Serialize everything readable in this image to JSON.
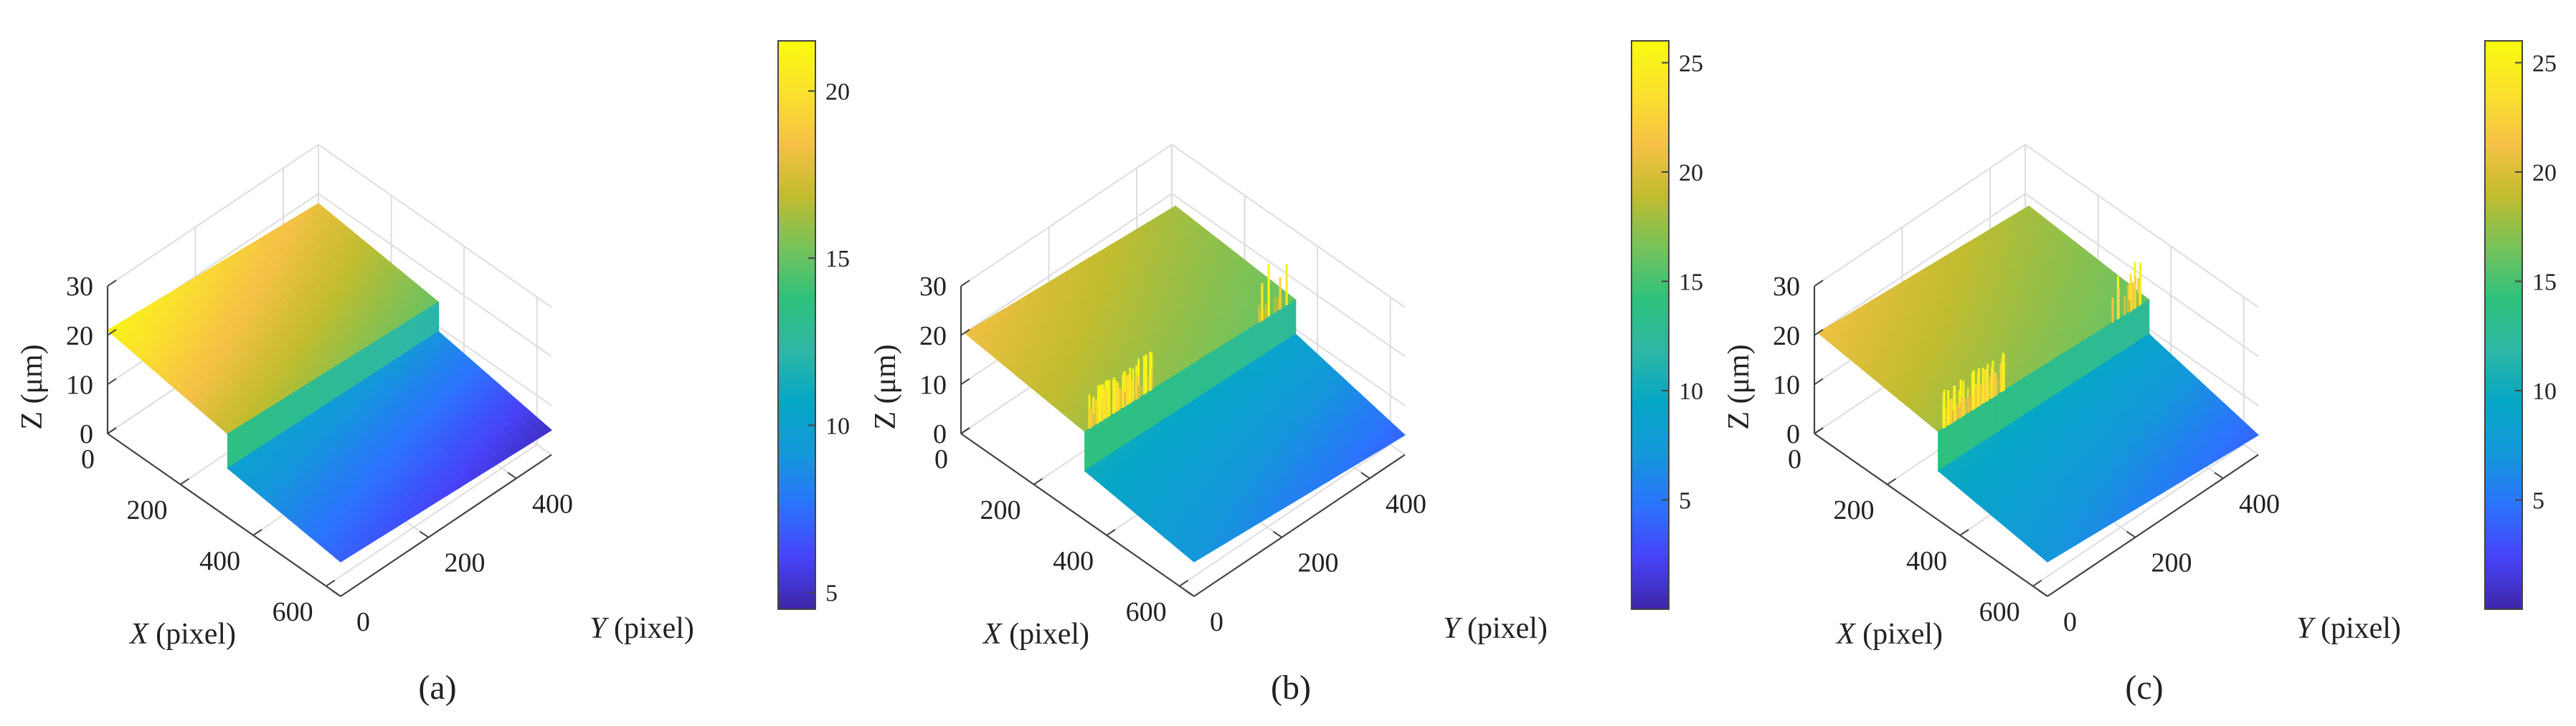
{
  "figure": {
    "colormap": [
      "#3e26a8",
      "#4743f8",
      "#2c73fd",
      "#1498da",
      "#06a6c6",
      "#2eb7a4",
      "#2dc17c",
      "#77c25a",
      "#c1bc2f",
      "#f6c146",
      "#fae12d",
      "#f9fb0e"
    ]
  },
  "chart_data": [
    {
      "type": "surface3d",
      "caption": "(a)",
      "xlabel_var": "X",
      "xlabel_unit": " (pixel)",
      "ylabel_var": "Y",
      "ylabel_unit": " (pixel)",
      "zlabel": "Z (μm)",
      "xlim": [
        0,
        640
      ],
      "ylim": [
        0,
        480
      ],
      "zlim": [
        0,
        30
      ],
      "xticks": [
        0,
        200,
        400,
        600
      ],
      "yticks": [
        0,
        200,
        400
      ],
      "zticks": [
        0,
        10,
        20,
        30
      ],
      "grid": true,
      "upper_plane": {
        "z_at_x0_y0": 21,
        "z_at_step_y0": 17,
        "z_at_x0_y480": 18,
        "z_at_step_y480": 15
      },
      "lower_plane": {
        "z_at_step_y0": 10,
        "z_at_x640_y0": 7,
        "z_at_step_y480": 9,
        "z_at_x640_y480": 5
      },
      "step_x": 330,
      "x_range": [
        0,
        640
      ],
      "y_range": [
        0,
        480
      ],
      "spikes": false,
      "colorbar": {
        "min": 4.5,
        "max": 21.5,
        "ticks": [
          5,
          10,
          15,
          20
        ]
      }
    },
    {
      "type": "surface3d",
      "caption": "(b)",
      "xlabel_var": "X",
      "xlabel_unit": " (pixel)",
      "ylabel_var": "Y",
      "ylabel_unit": " (pixel)",
      "zlabel": "Z (μm)",
      "xlim": [
        0,
        640
      ],
      "ylim": [
        0,
        480
      ],
      "zlim": [
        0,
        30
      ],
      "xticks": [
        0,
        200,
        400,
        600
      ],
      "yticks": [
        0,
        200,
        400
      ],
      "zticks": [
        0,
        10,
        20,
        30
      ],
      "grid": true,
      "upper_plane": {
        "z_at_x0_y0": 21,
        "z_at_step_y0": 18,
        "z_at_x0_y480": 18,
        "z_at_step_y480": 16
      },
      "lower_plane": {
        "z_at_step_y0": 10,
        "z_at_x640_y0": 7,
        "z_at_step_y480": 9,
        "z_at_x640_y480": 4
      },
      "step_x": 340,
      "x_range": [
        10,
        640
      ],
      "y_range": [
        0,
        480
      ],
      "spikes": true,
      "colorbar": {
        "min": 0,
        "max": 26,
        "ticks": [
          5,
          10,
          15,
          20,
          25
        ]
      }
    },
    {
      "type": "surface3d",
      "caption": "(c)",
      "xlabel_var": "X",
      "xlabel_unit": " (pixel)",
      "ylabel_var": "Y",
      "ylabel_unit": " (pixel)",
      "zlabel": "Z (μm)",
      "xlim": [
        0,
        640
      ],
      "ylim": [
        0,
        480
      ],
      "zlim": [
        0,
        30
      ],
      "xticks": [
        0,
        200,
        400,
        600
      ],
      "yticks": [
        0,
        200,
        400
      ],
      "zticks": [
        0,
        10,
        20,
        30
      ],
      "grid": true,
      "upper_plane": {
        "z_at_x0_y0": 21,
        "z_at_step_y0": 18,
        "z_at_x0_y480": 18,
        "z_at_step_y480": 16
      },
      "lower_plane": {
        "z_at_step_y0": 10,
        "z_at_x640_y0": 7,
        "z_at_step_y480": 9,
        "z_at_x640_y480": 4
      },
      "step_x": 340,
      "x_range": [
        10,
        640
      ],
      "y_range": [
        0,
        480
      ],
      "spikes": true,
      "colorbar": {
        "min": 0,
        "max": 26,
        "ticks": [
          5,
          10,
          15,
          20,
          25
        ]
      }
    }
  ]
}
